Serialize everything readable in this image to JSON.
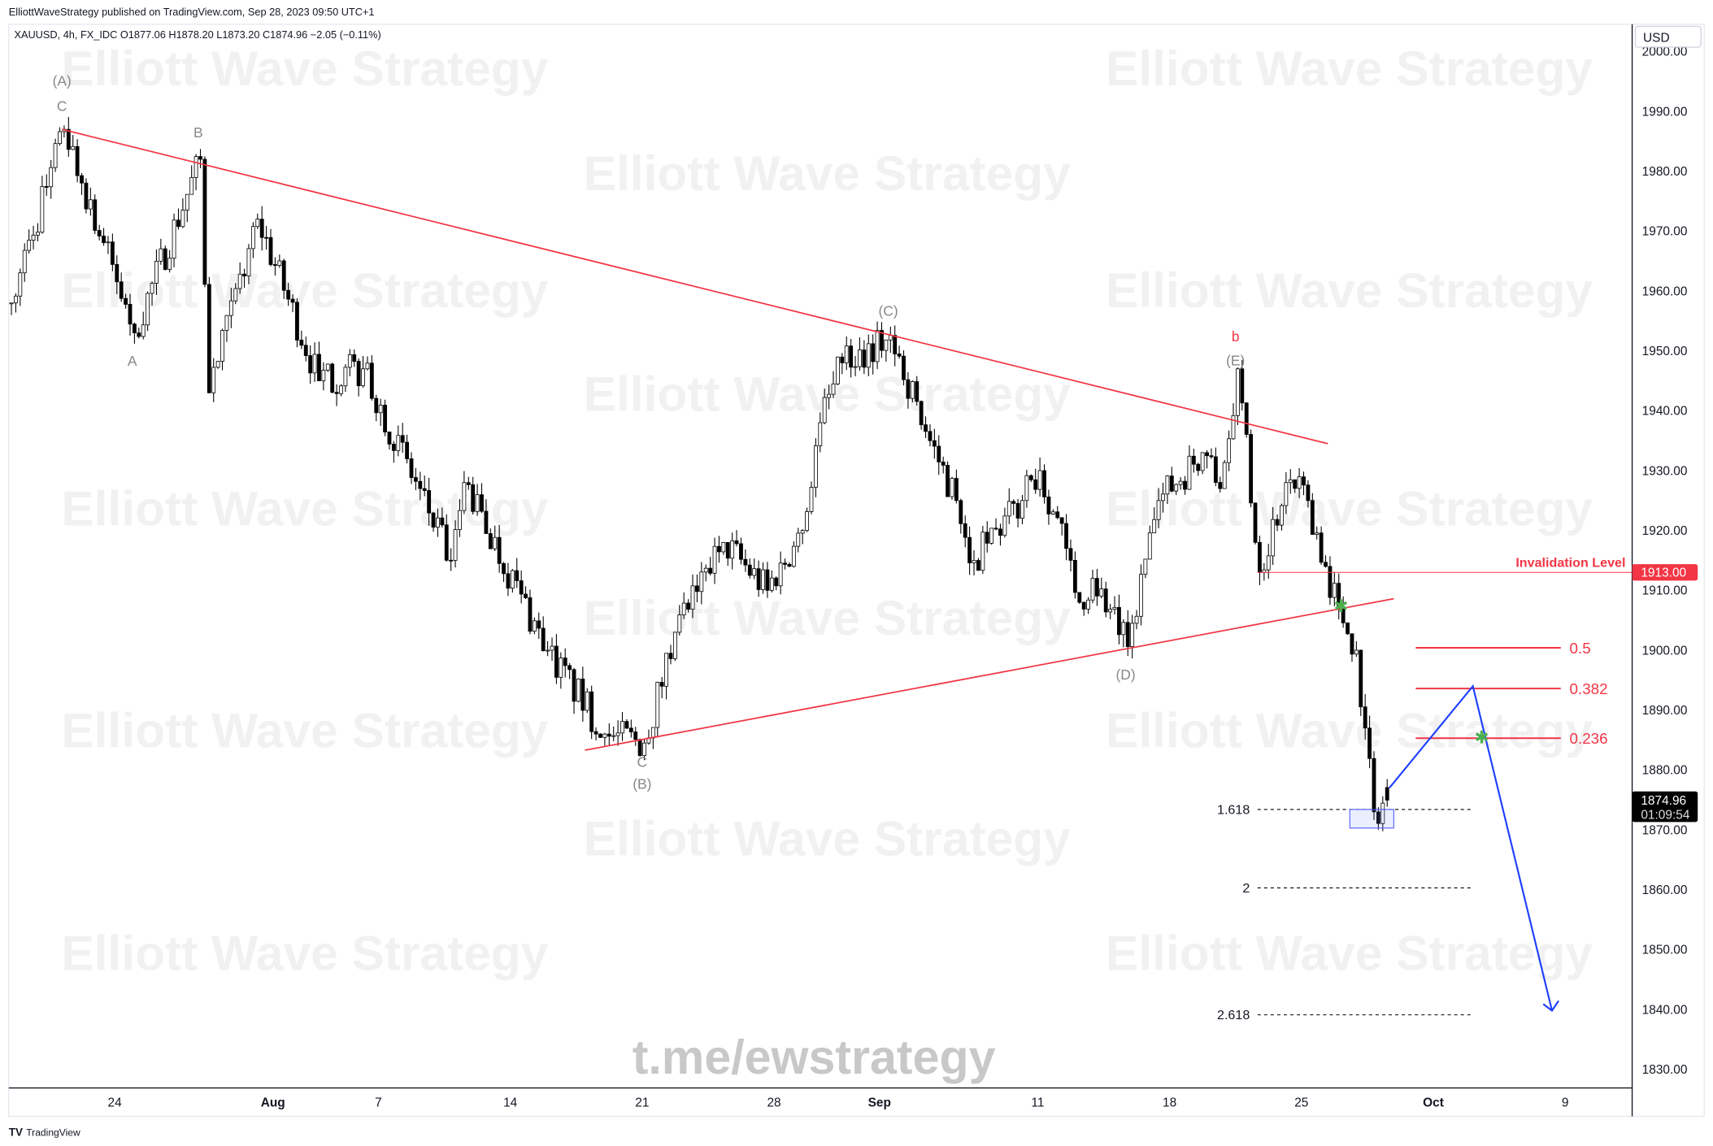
{
  "header": {
    "published": "ElliottWaveStrategy published on TradingView.com, Sep 28, 2023 09:50 UTC+1",
    "legend": "XAUUSD, 4h, FX_IDC  O1877.06  H1878.20  L1873.20  C1874.96  −2.05 (−0.11%)"
  },
  "currency": "USD",
  "footer": {
    "logo_text": "TradingView"
  },
  "watermark": {
    "text": "Elliott Wave Strategy",
    "link": "t.me/ewstrategy"
  },
  "colors": {
    "annotation_red": "#f23645",
    "projection_blue": "#1e40ff",
    "star_green": "#4caf50",
    "up_body": "#ffffff",
    "down_body": "#000000"
  },
  "chart_data": {
    "type": "candlestick",
    "symbol": "XAUUSD",
    "interval": "4h",
    "source": "FX_IDC",
    "ohlc": {
      "open": 1877.06,
      "high": 1878.2,
      "low": 1873.2,
      "close": 1874.96,
      "change": -2.05,
      "change_pct": -0.11
    },
    "last_price": "1874.96",
    "countdown": "01:09:54",
    "ylim": [
      1825,
      2005
    ],
    "y_ticks": [
      "2000.00",
      "1990.00",
      "1980.00",
      "1970.00",
      "1960.00",
      "1950.00",
      "1940.00",
      "1930.00",
      "1920.00",
      "1910.00",
      "1900.00",
      "1890.00",
      "1880.00",
      "1870.00",
      "1860.00",
      "1850.00",
      "1840.00",
      "1830.00"
    ],
    "x_ticks": [
      {
        "label": "24",
        "date": "Jul 24 00:00"
      },
      {
        "label": "Aug",
        "date": "Aug 1 00:00"
      },
      {
        "label": "7",
        "date": "Aug 7 00:00"
      },
      {
        "label": "14",
        "date": "Aug 14 00:00"
      },
      {
        "label": "21",
        "date": "Aug 21 00:00"
      },
      {
        "label": "28",
        "date": "Aug 28 00:00"
      },
      {
        "label": "Sep",
        "date": "Sep 1 00:00"
      },
      {
        "label": "11",
        "date": "Sep 11 00:00"
      },
      {
        "label": "18",
        "date": "Sep 18 00:00"
      },
      {
        "label": "25",
        "date": "Sep 25 00:00"
      },
      {
        "label": "Oct",
        "date": "Oct 2 00:00"
      },
      {
        "label": "9",
        "date": "Oct 9 00:00"
      }
    ],
    "price_path": [
      [
        "Jul 18 00:00",
        1958
      ],
      [
        "Jul 20 00:00",
        1987
      ],
      [
        "Jul 24 16:00",
        1953
      ],
      [
        "Jul 27 04:00",
        1982
      ],
      [
        "Jul 27 12:00",
        1943
      ],
      [
        "Jul 31 08:00",
        1972
      ],
      [
        "Aug 2 16:00",
        1945
      ],
      [
        "Aug 4 08:00",
        1947
      ],
      [
        "Aug 9 16:00",
        1915
      ],
      [
        "Aug 10 04:00",
        1928
      ],
      [
        "Aug 15 08:00",
        1900
      ],
      [
        "Aug 17 12:00",
        1886
      ],
      [
        "Aug 21 00:00",
        1884.5
      ],
      [
        "Aug 22 04:00",
        1903
      ],
      [
        "Aug 24 00:00",
        1918
      ],
      [
        "Aug 25 16:00",
        1910
      ],
      [
        "Aug 29 00:00",
        1920
      ],
      [
        "Aug 29 16:00",
        1938
      ],
      [
        "Aug 30 12:00",
        1948
      ],
      [
        "Sep 1 08:00",
        1952.6
      ],
      [
        "Sep 4 20:00",
        1935
      ],
      [
        "Sep 5 20:00",
        1925
      ],
      [
        "Sep 6 12:00",
        1915
      ],
      [
        "Sep 8 08:00",
        1925
      ],
      [
        "Sep 11 00:00",
        1930
      ],
      [
        "Sep 12 00:00",
        1917
      ],
      [
        "Sep 12 12:00",
        1908
      ],
      [
        "Sep 13 00:00",
        1912
      ],
      [
        "Sep 14 08:00",
        1900.6
      ],
      [
        "Sep 15 12:00",
        1925
      ],
      [
        "Sep 19 04:00",
        1933
      ],
      [
        "Sep 19 20:00",
        1927
      ],
      [
        "Sep 20 12:00",
        1947
      ],
      [
        "Sep 21 08:00",
        1913
      ],
      [
        "Sep 22 08:00",
        1928
      ],
      [
        "Sep 25 04:00",
        1925
      ],
      [
        "Sep 25 20:00",
        1914
      ],
      [
        "Sep 26 08:00",
        1907
      ],
      [
        "Sep 27 00:00",
        1900
      ],
      [
        "Sep 27 08:00",
        1887
      ],
      [
        "Sep 27 16:00",
        1873
      ],
      [
        "Sep 28 04:00",
        1874.96
      ]
    ],
    "wave_labels": [
      {
        "text": "(A)",
        "date": "Jul 20 00:00",
        "price": 1987,
        "color": "#888888"
      },
      {
        "text": "C",
        "date": "Jul 20 00:00",
        "price": 1987,
        "color": "#888888"
      },
      {
        "text": "B",
        "date": "Jul 27 04:00",
        "price": 1982,
        "color": "#888888"
      },
      {
        "text": "A",
        "date": "Jul 24 16:00",
        "price": 1953,
        "color": "#888888"
      },
      {
        "text": "(C)",
        "date": "Sep 1 08:00",
        "price": 1952.6,
        "color": "#888888"
      },
      {
        "text": "b",
        "date": "Sep 20 12:00",
        "price": 1947,
        "color": "#f23645"
      },
      {
        "text": "(E)",
        "date": "Sep 20 12:00",
        "price": 1947,
        "color": "#888888"
      },
      {
        "text": "(D)",
        "date": "Sep 14 08:00",
        "price": 1900.6,
        "color": "#888888"
      },
      {
        "text": "C",
        "date": "Aug 21 00:00",
        "price": 1884.5,
        "color": "#888888"
      },
      {
        "text": "(B)",
        "date": "Aug 21 00:00",
        "price": 1884.5,
        "color": "#888888"
      }
    ],
    "trendlines": [
      {
        "from": [
          "Jul 20 00:00",
          1987
        ],
        "to": [
          "Sep 26 00:00",
          1934.5
        ],
        "color": "#f23645"
      },
      {
        "from": [
          "Aug 16 20:00",
          1883.3
        ],
        "to": [
          "Sep 28 12:00",
          1908.6
        ],
        "color": "#f23645"
      }
    ],
    "invalidation": {
      "label": "Invalidation Level",
      "price": 1913,
      "price_label": "1913.00",
      "from": "Sep 21 08:00"
    },
    "fib_retracements": [
      {
        "label": "0.5",
        "price": 1900.4
      },
      {
        "label": "0.382",
        "price": 1893.6
      },
      {
        "label": "0.236",
        "price": 1885.3
      }
    ],
    "fib_range": {
      "from": "Sep 29 08:00",
      "to": "Oct 6 20:00"
    },
    "fib_extensions": [
      {
        "label": "1.618",
        "price": 1873.4
      },
      {
        "label": "2",
        "price": 1860.3
      },
      {
        "label": "2.618",
        "price": 1839.1
      }
    ],
    "ext_range": {
      "from": "Sep 21 08:00",
      "to": "Oct 3 12:00"
    },
    "projection": [
      [
        "Sep 28 08:00",
        1877
      ],
      [
        "Oct 3 12:00",
        1894
      ],
      [
        "Oct 6 12:00",
        1839.8
      ]
    ],
    "target_box": {
      "from": "Sep 26 20:00",
      "to": "Sep 28 12:00",
      "top": 1873.4,
      "bottom": 1870.3
    },
    "stars": [
      [
        "Sep 26 12:00",
        1907.3
      ],
      [
        "Oct 3 20:00",
        1885.4
      ]
    ]
  }
}
